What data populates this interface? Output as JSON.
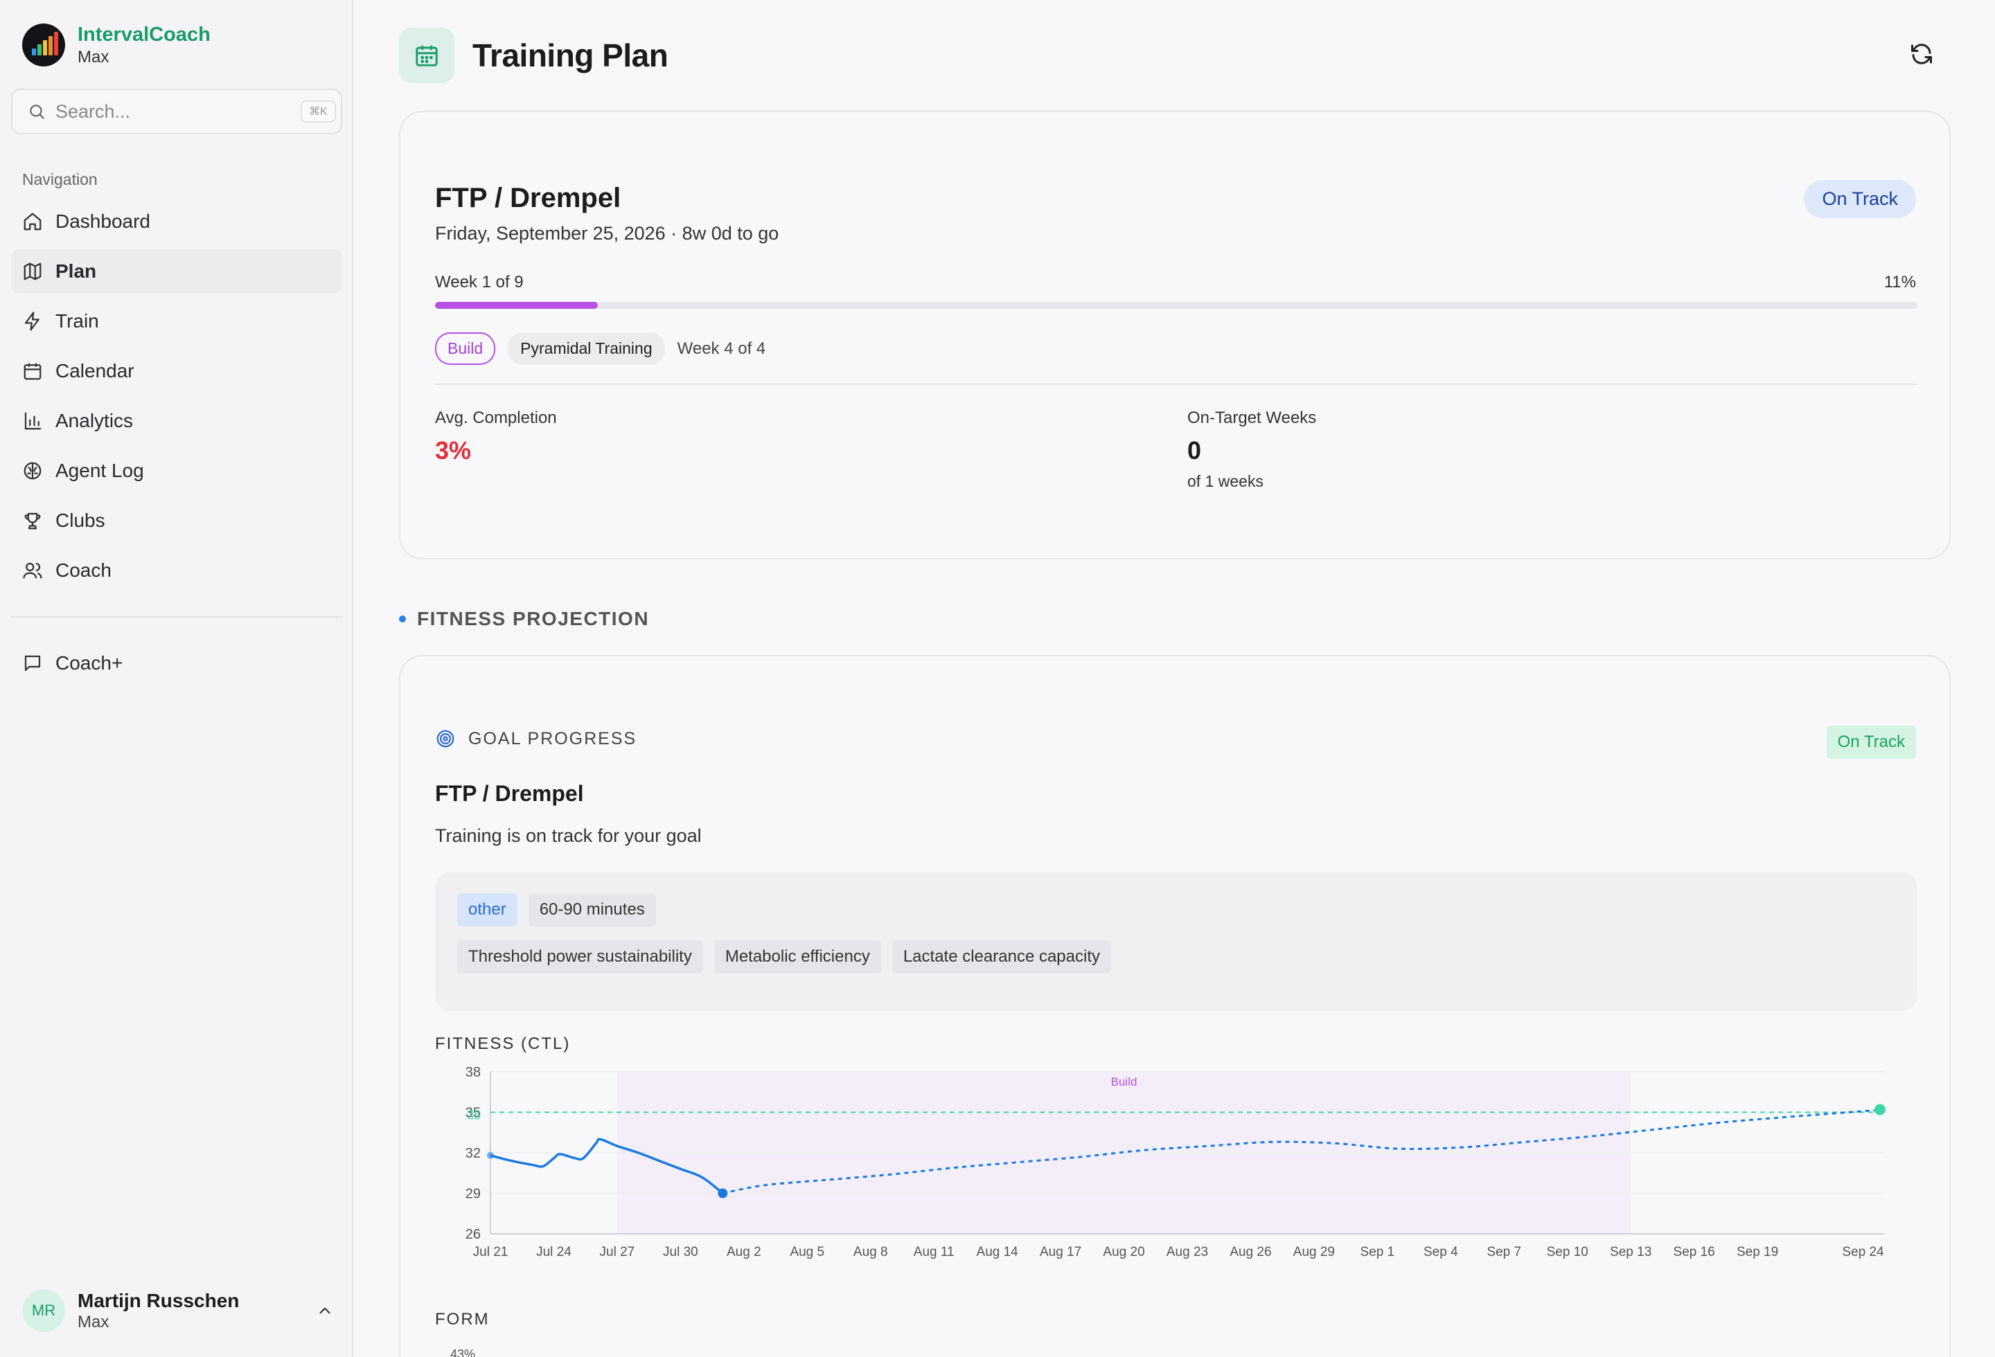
{
  "app": {
    "name": "IntervalCoach",
    "profile": "Max"
  },
  "search": {
    "placeholder": "Search...",
    "shortcut": "⌘K"
  },
  "sidebar": {
    "nav_label": "Navigation",
    "items": [
      {
        "label": "Dashboard",
        "icon": "home-icon"
      },
      {
        "label": "Plan",
        "icon": "map-icon",
        "active": true
      },
      {
        "label": "Train",
        "icon": "zap-icon"
      },
      {
        "label": "Calendar",
        "icon": "calendar-icon"
      },
      {
        "label": "Analytics",
        "icon": "bar-chart-icon"
      },
      {
        "label": "Agent Log",
        "icon": "brain-icon"
      },
      {
        "label": "Clubs",
        "icon": "trophy-icon"
      },
      {
        "label": "Coach",
        "icon": "users-icon"
      }
    ],
    "coach_plus": "Coach+"
  },
  "user": {
    "initials": "MR",
    "name": "Martijn Russchen",
    "sub": "Max"
  },
  "header": {
    "title": "Training Plan"
  },
  "goal": {
    "title": "FTP / Drempel",
    "date": "Friday, September 25, 2026 · 8w 0d to go",
    "status": "On Track",
    "week_label": "Week 1 of 9",
    "percent_label": "11%",
    "progress": 0.11,
    "phase_tag": "Build",
    "phase_name": "Pyramidal Training",
    "phase_week": "Week 4 of 4",
    "avg_completion_label": "Avg. Completion",
    "avg_completion_value": "3%",
    "on_target_label": "On-Target Weeks",
    "on_target_value": "0",
    "on_target_sub": "of 1 weeks"
  },
  "projection": {
    "section_title": "FITNESS PROJECTION",
    "gp_label": "GOAL PROGRESS",
    "gp_status": "On Track",
    "gp_title": "FTP / Drempel",
    "gp_desc": "Training is on track for your goal",
    "tags_row1": [
      "other",
      "60-90 minutes"
    ],
    "tags_row2": [
      "Threshold power sustainability",
      "Metabolic efficiency",
      "Lactate clearance capacity"
    ],
    "chart_label": "FITNESS (CTL)",
    "form_label": "FORM",
    "form_tick": "43%"
  },
  "chart_data": {
    "type": "line",
    "title": "FITNESS (CTL)",
    "x_labels": [
      "Jul 21",
      "Jul 24",
      "Jul 27",
      "Jul 30",
      "Aug 2",
      "Aug 5",
      "Aug 8",
      "Aug 11",
      "Aug 14",
      "Aug 17",
      "Aug 20",
      "Aug 23",
      "Aug 26",
      "Aug 29",
      "Sep 1",
      "Sep 4",
      "Sep 7",
      "Sep 10",
      "Sep 13",
      "Sep 16",
      "Sep 19",
      "Sep 24"
    ],
    "y_ticks": [
      38,
      35,
      32,
      29,
      26
    ],
    "ylim": [
      26,
      38
    ],
    "target": 35,
    "target_label": "35",
    "phase_band": {
      "label": "Build",
      "from_day": 6,
      "to_day": 54
    },
    "actual": [
      {
        "d": 0,
        "v": 31.8
      },
      {
        "d": 1,
        "v": 31.4
      },
      {
        "d": 2,
        "v": 31.1
      },
      {
        "d": 2.5,
        "v": 31.0
      },
      {
        "d": 3,
        "v": 31.6
      },
      {
        "d": 3.3,
        "v": 31.9
      },
      {
        "d": 4,
        "v": 31.6
      },
      {
        "d": 4.4,
        "v": 31.6
      },
      {
        "d": 5,
        "v": 32.7
      },
      {
        "d": 5.2,
        "v": 33.0
      },
      {
        "d": 6,
        "v": 32.5
      },
      {
        "d": 7,
        "v": 32.0
      },
      {
        "d": 8,
        "v": 31.4
      },
      {
        "d": 9,
        "v": 30.8
      },
      {
        "d": 10,
        "v": 30.2
      },
      {
        "d": 11,
        "v": 29.0
      }
    ],
    "projected": [
      {
        "d": 11,
        "v": 29.0
      },
      {
        "d": 13,
        "v": 29.6
      },
      {
        "d": 16,
        "v": 30.0
      },
      {
        "d": 19,
        "v": 30.4
      },
      {
        "d": 22,
        "v": 30.9
      },
      {
        "d": 25,
        "v": 31.3
      },
      {
        "d": 28,
        "v": 31.7
      },
      {
        "d": 31,
        "v": 32.2
      },
      {
        "d": 34,
        "v": 32.5
      },
      {
        "d": 37,
        "v": 32.8
      },
      {
        "d": 40,
        "v": 32.7
      },
      {
        "d": 43,
        "v": 32.3
      },
      {
        "d": 46,
        "v": 32.4
      },
      {
        "d": 49,
        "v": 32.8
      },
      {
        "d": 52,
        "v": 33.2
      },
      {
        "d": 55,
        "v": 33.7
      },
      {
        "d": 58,
        "v": 34.2
      },
      {
        "d": 61,
        "v": 34.6
      },
      {
        "d": 66,
        "v": 35.2
      }
    ],
    "colors": {
      "actual": "#1a7ae0",
      "target": "#3ed6a6",
      "band": "#f3eef9",
      "build_label": "#b750e4"
    }
  }
}
